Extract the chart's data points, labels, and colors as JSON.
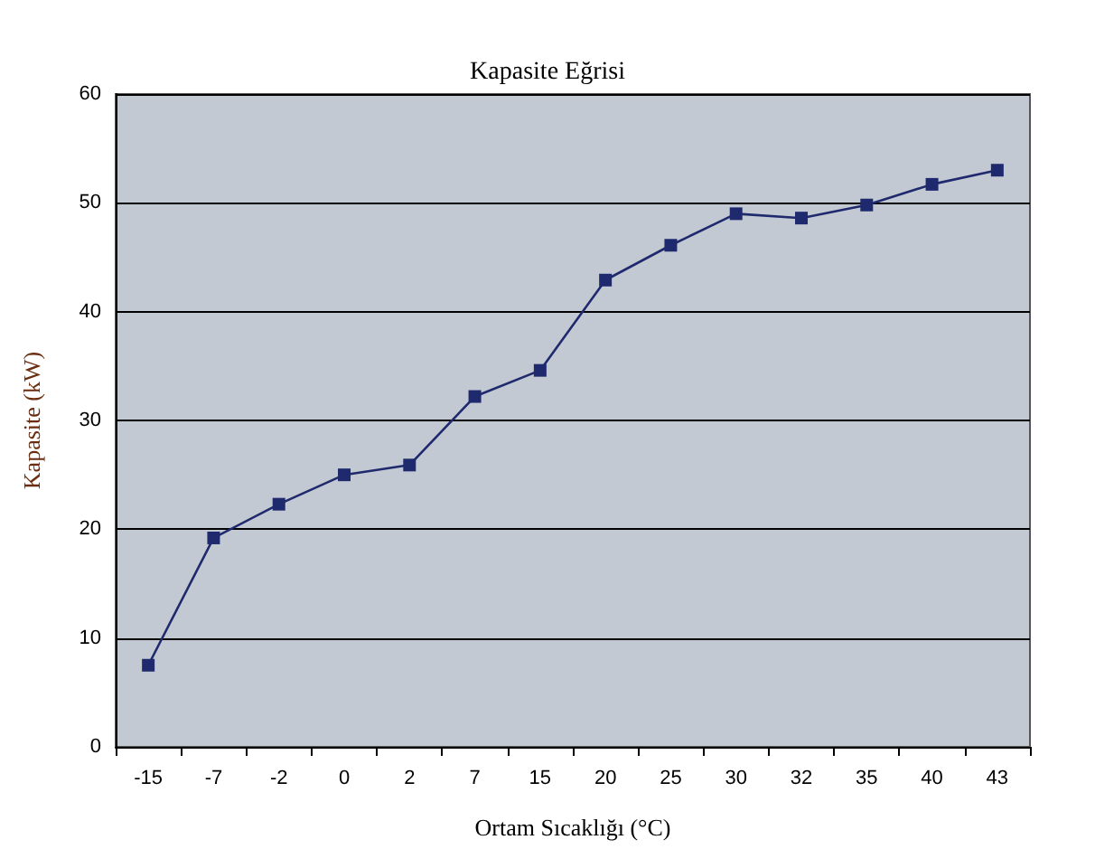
{
  "chart_data": {
    "type": "line",
    "title": "Kapasite Eğrisi",
    "xlabel": "Ortam Sıcaklığı (°C)",
    "ylabel": "Kapasite (kW)",
    "categories": [
      "-15",
      "-7",
      "-2",
      "0",
      "2",
      "7",
      "15",
      "20",
      "25",
      "30",
      "32",
      "35",
      "40",
      "43"
    ],
    "series": [
      {
        "color": "#1f2a6e",
        "values": [
          7.5,
          19.2,
          22.3,
          25,
          25.9,
          32.2,
          34.6,
          42.9,
          46.1,
          49,
          48.6,
          49.8,
          51.7,
          53
        ]
      }
    ],
    "ylim": [
      0,
      60
    ],
    "yticks": [
      0,
      10,
      20,
      30,
      40,
      50,
      60
    ],
    "grid": "y",
    "marker": "square",
    "line_style": "solid"
  }
}
